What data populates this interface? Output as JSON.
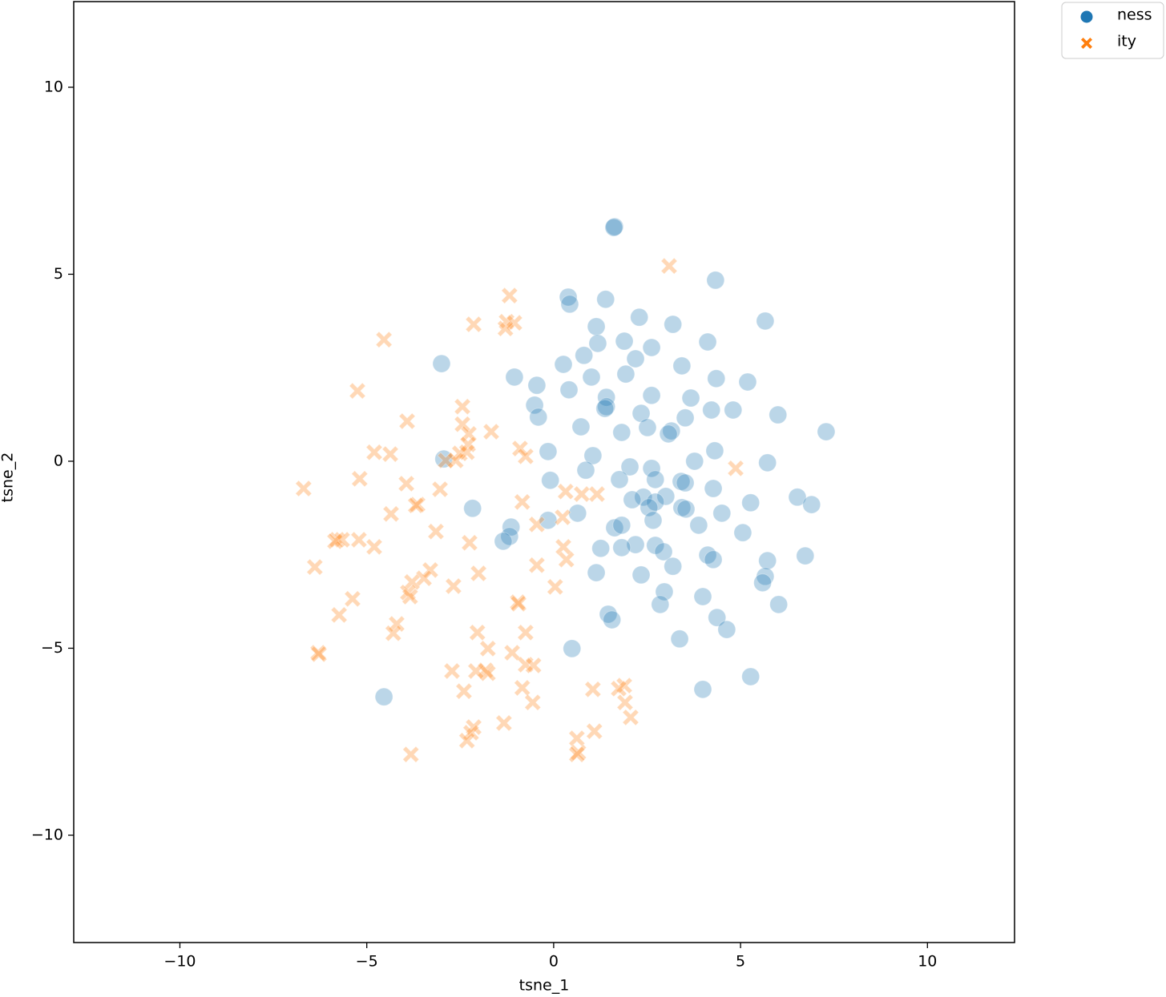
{
  "chart_data": {
    "type": "scatter",
    "x_label": "tsne_1",
    "y_label": "tsne_2",
    "xlim": [
      -12.84,
      12.33
    ],
    "ylim": [
      -12.87,
      12.29
    ],
    "xticks": [
      {
        "value": -10,
        "label": "−10"
      },
      {
        "value": -5,
        "label": "−5"
      },
      0,
      5,
      10
    ],
    "yticks": [
      {
        "value": -10,
        "label": "−10"
      },
      {
        "value": -5,
        "label": "−5"
      },
      0,
      5,
      10
    ],
    "grid": false,
    "legend": "outside upper right",
    "series": [
      {
        "name": "ness",
        "color": "#1f77b4",
        "marker": "circle",
        "x": [
          1.63,
          1.61,
          4.33,
          0.39,
          0.43,
          1.39,
          5.66,
          2.29,
          1.14,
          3.19,
          1.18,
          1.89,
          4.12,
          2.62,
          0.81,
          2.19,
          -3.0,
          0.26,
          3.43,
          -1.05,
          1.01,
          1.93,
          -0.45,
          4.35,
          5.19,
          0.41,
          1.41,
          2.62,
          3.67,
          -0.51,
          1.41,
          1.37,
          4.22,
          4.8,
          -0.41,
          2.34,
          3.52,
          6.0,
          0.73,
          2.51,
          1.82,
          3.15,
          3.07,
          7.29,
          -0.15,
          4.31,
          1.05,
          -2.94,
          3.77,
          5.72,
          2.04,
          0.86,
          2.62,
          -0.09,
          1.76,
          2.72,
          3.41,
          3.52,
          4.27,
          6.52,
          3.0,
          2.4,
          2.1,
          2.72,
          5.27,
          6.9,
          2.55,
          3.43,
          3.54,
          -2.17,
          0.64,
          4.5,
          -0.15,
          2.66,
          3.88,
          1.63,
          1.82,
          -1.14,
          5.06,
          -1.18,
          -1.35,
          2.19,
          1.26,
          1.82,
          2.72,
          2.94,
          4.12,
          4.27,
          6.73,
          5.72,
          3.19,
          1.14,
          2.34,
          5.66,
          5.59,
          2.96,
          3.99,
          2.85,
          6.02,
          1.46,
          1.56,
          4.37,
          4.63,
          3.37,
          0.49,
          5.27,
          3.99,
          -4.54
        ],
        "values": [
          6.27,
          6.25,
          4.84,
          4.39,
          4.2,
          4.33,
          3.75,
          3.85,
          3.6,
          3.66,
          3.15,
          3.21,
          3.19,
          3.04,
          2.83,
          2.74,
          2.61,
          2.59,
          2.55,
          2.25,
          2.25,
          2.33,
          2.03,
          2.21,
          2.12,
          1.91,
          1.71,
          1.76,
          1.69,
          1.5,
          1.46,
          1.41,
          1.37,
          1.37,
          1.18,
          1.28,
          1.16,
          1.24,
          0.92,
          0.9,
          0.77,
          0.81,
          0.73,
          0.79,
          0.26,
          0.28,
          0.15,
          0.06,
          0.0,
          -0.04,
          -0.15,
          -0.24,
          -0.19,
          -0.51,
          -0.49,
          -0.49,
          -0.54,
          -0.58,
          -0.73,
          -0.96,
          -0.94,
          -0.96,
          -1.03,
          -1.09,
          -1.11,
          -1.16,
          -1.24,
          -1.24,
          -1.28,
          -1.26,
          -1.39,
          -1.39,
          -1.58,
          -1.58,
          -1.71,
          -1.78,
          -1.71,
          -1.76,
          -1.91,
          -2.01,
          -2.14,
          -2.23,
          -2.33,
          -2.31,
          -2.25,
          -2.42,
          -2.51,
          -2.63,
          -2.53,
          -2.66,
          -2.81,
          -2.98,
          -3.04,
          -3.08,
          -3.25,
          -3.49,
          -3.62,
          -3.83,
          -3.83,
          -4.09,
          -4.24,
          -4.18,
          -4.5,
          -4.75,
          -5.01,
          -5.76,
          -6.1,
          -6.3
        ]
      },
      {
        "name": "ity",
        "color": "#ff7f0e",
        "marker": "x",
        "x": [
          3.09,
          -1.18,
          -2.14,
          -1.26,
          -1.05,
          -1.29,
          -4.54,
          -5.25,
          -2.44,
          -3.92,
          -2.44,
          -1.67,
          -2.27,
          -2.29,
          -0.9,
          -0.75,
          -4.8,
          -4.37,
          -2.51,
          -2.32,
          -2.62,
          -2.89,
          4.87,
          -5.19,
          -3.94,
          -6.69,
          -3.04,
          0.32,
          0.75,
          1.16,
          -0.84,
          -3.64,
          -3.69,
          -4.35,
          0.24,
          -0.45,
          -3.15,
          -5.79,
          -5.66,
          -5.21,
          -5.85,
          -2.25,
          -4.8,
          0.26,
          0.34,
          -6.39,
          -0.45,
          -2.01,
          -3.3,
          -3.47,
          -3.79,
          -2.68,
          0.04,
          -3.9,
          -3.84,
          -0.96,
          -0.94,
          -5.38,
          -5.74,
          -4.2,
          -4.29,
          -2.04,
          -0.75,
          -1.76,
          -1.11,
          -6.3,
          -6.28,
          -0.75,
          -0.54,
          -2.72,
          -1.82,
          -1.76,
          -2.08,
          -0.84,
          1.89,
          1.74,
          1.05,
          -2.4,
          -0.56,
          1.91,
          2.06,
          -1.33,
          -2.14,
          -2.21,
          1.09,
          0.62,
          -2.32,
          0.66,
          0.62,
          -3.82
        ],
        "values": [
          5.22,
          4.43,
          3.66,
          3.73,
          3.7,
          3.55,
          3.25,
          1.88,
          1.46,
          1.07,
          0.99,
          0.79,
          0.73,
          0.45,
          0.34,
          0.13,
          0.24,
          0.19,
          0.21,
          0.24,
          0.02,
          0.02,
          -0.19,
          -0.47,
          -0.6,
          -0.73,
          -0.75,
          -0.81,
          -0.88,
          -0.88,
          -1.09,
          -1.16,
          -1.18,
          -1.41,
          -1.5,
          -1.69,
          -1.88,
          -2.1,
          -2.1,
          -2.1,
          -2.14,
          -2.18,
          -2.29,
          -2.29,
          -2.63,
          -2.83,
          -2.78,
          -3.0,
          -2.91,
          -3.13,
          -3.23,
          -3.34,
          -3.36,
          -3.51,
          -3.62,
          -3.77,
          -3.81,
          -3.68,
          -4.11,
          -4.35,
          -4.6,
          -4.58,
          -4.58,
          -5.01,
          -5.12,
          -5.12,
          -5.16,
          -5.44,
          -5.46,
          -5.61,
          -5.59,
          -5.67,
          -5.61,
          -6.06,
          -6.0,
          -6.08,
          -6.1,
          -6.15,
          -6.45,
          -6.45,
          -6.85,
          -7.0,
          -7.11,
          -7.26,
          -7.22,
          -7.41,
          -7.47,
          -7.79,
          -7.84,
          -7.84
        ]
      }
    ]
  }
}
